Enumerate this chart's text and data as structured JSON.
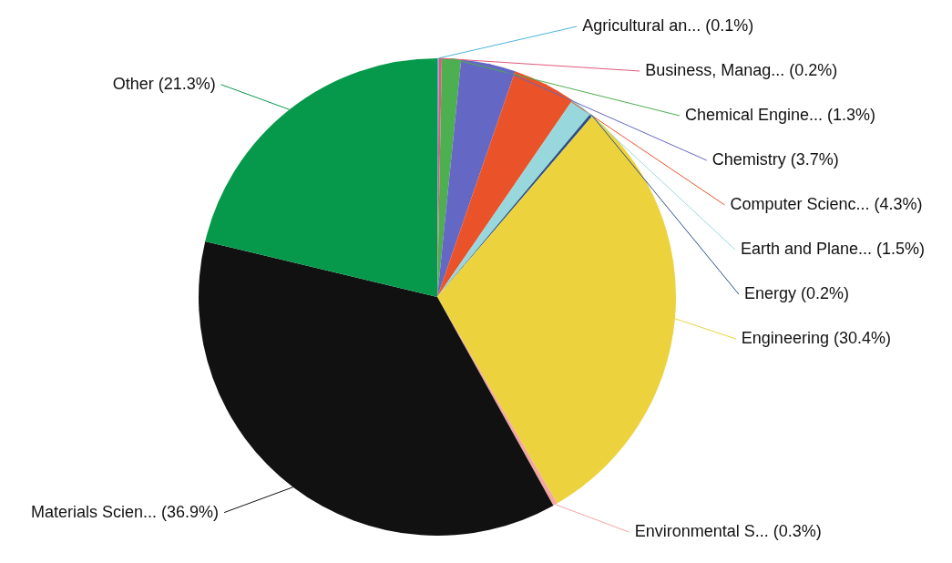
{
  "chart_data": {
    "type": "pie",
    "legend": false,
    "categories": [
      "Agricultural an...",
      "Business, Manag...",
      "Chemical Engine...",
      "Chemistry",
      "Computer Scienc...",
      "Earth and Plane...",
      "Energy",
      "Engineering",
      "Environmental S...",
      "Materials Scien...",
      "Other"
    ],
    "values": [
      0.1,
      0.2,
      1.3,
      3.7,
      4.3,
      1.5,
      0.2,
      30.4,
      0.3,
      36.9,
      21.3
    ],
    "value_labels": [
      "(0.1%)",
      "(0.2%)",
      "(1.3%)",
      "(3.7%)",
      "(4.3%)",
      "(1.5%)",
      "(0.2%)",
      "(30.4%)",
      "(0.3%)",
      "(36.9%)",
      "(21.3%)"
    ],
    "colors": [
      "#4bb4dc",
      "#e0587a",
      "#4caf50",
      "#6567c4",
      "#ea5329",
      "#98d8dc",
      "#2b4f86",
      "#ecd33e",
      "#f2a7a0",
      "#111111",
      "#07994b"
    ]
  }
}
